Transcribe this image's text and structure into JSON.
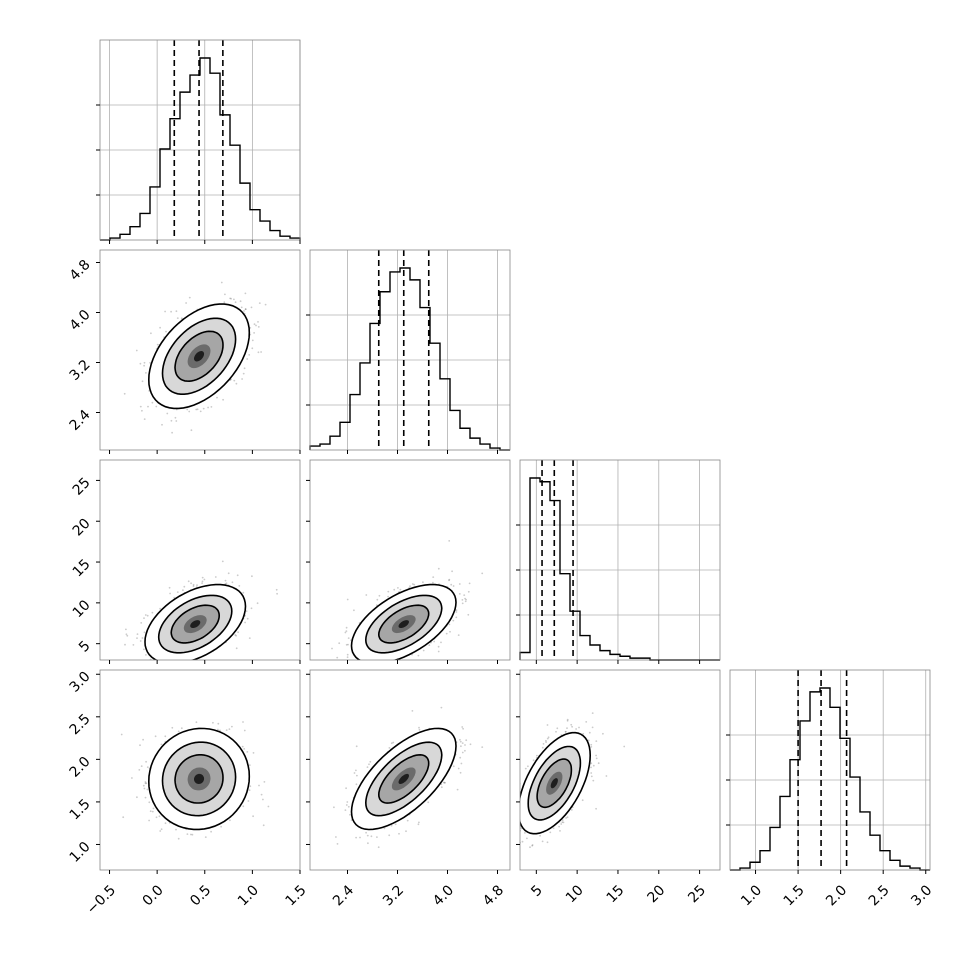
{
  "chart_data": {
    "type": "scatter",
    "title": "",
    "variables": [
      {
        "axis_range": [
          -0.6,
          1.5
        ],
        "tick_values": [
          -0.5,
          0.0,
          0.5,
          1.0,
          1.5
        ],
        "tick_labels": [
          "−0.5",
          "0.0",
          "0.5",
          "1.0",
          "1.5"
        ],
        "quantile_lines": [
          0.18,
          0.44,
          0.69
        ],
        "histogram": [
          0.0,
          0.01,
          0.03,
          0.07,
          0.14,
          0.28,
          0.48,
          0.64,
          0.78,
          0.87,
          0.96,
          0.88,
          0.66,
          0.5,
          0.3,
          0.16,
          0.1,
          0.05,
          0.02,
          0.01
        ]
      },
      {
        "axis_range": [
          1.8,
          5.0
        ],
        "tick_values": [
          2.4,
          3.2,
          4.0,
          4.8
        ],
        "tick_labels": [
          "2.4",
          "3.2",
          "4.0",
          "4.8"
        ],
        "quantile_lines": [
          2.9,
          3.3,
          3.7
        ],
        "histogram": [
          0.02,
          0.03,
          0.07,
          0.14,
          0.28,
          0.44,
          0.64,
          0.8,
          0.9,
          0.92,
          0.86,
          0.72,
          0.54,
          0.36,
          0.2,
          0.11,
          0.06,
          0.03,
          0.01,
          0.0
        ]
      },
      {
        "axis_range": [
          3.0,
          27.5
        ],
        "tick_values": [
          5,
          10,
          15,
          20,
          25
        ],
        "tick_labels": [
          "5",
          "10",
          "15",
          "20",
          "25"
        ],
        "quantile_lines": [
          5.7,
          7.2,
          9.5
        ],
        "histogram": [
          0.04,
          0.97,
          0.95,
          0.85,
          0.46,
          0.26,
          0.13,
          0.08,
          0.05,
          0.03,
          0.02,
          0.01,
          0.01,
          0.0,
          0.0,
          0.0,
          0.0,
          0.0,
          0.0,
          0.0
        ]
      },
      {
        "axis_range": [
          0.7,
          3.05
        ],
        "tick_values": [
          1.0,
          1.5,
          2.0,
          2.5,
          3.0
        ],
        "tick_labels": [
          "1.0",
          "1.5",
          "2.0",
          "2.5",
          "3.0"
        ],
        "quantile_lines": [
          1.5,
          1.77,
          2.07
        ],
        "histogram": [
          0.0,
          0.01,
          0.04,
          0.1,
          0.22,
          0.38,
          0.57,
          0.77,
          0.92,
          0.94,
          0.84,
          0.68,
          0.48,
          0.3,
          0.18,
          0.1,
          0.05,
          0.02,
          0.01,
          0.0
        ]
      }
    ],
    "scatter_pairs": [
      {
        "x_var": 0,
        "y_var": 1,
        "center": [
          0.44,
          3.3
        ],
        "spread": [
          0.24,
          0.38
        ],
        "correlation": 0.45
      },
      {
        "x_var": 0,
        "y_var": 2,
        "center": [
          0.4,
          7.4
        ],
        "spread": [
          0.24,
          2.2
        ],
        "correlation": 0.45
      },
      {
        "x_var": 1,
        "y_var": 2,
        "center": [
          3.3,
          7.4
        ],
        "spread": [
          0.38,
          2.2
        ],
        "correlation": 0.55
      },
      {
        "x_var": 0,
        "y_var": 3,
        "center": [
          0.44,
          1.77
        ],
        "spread": [
          0.24,
          0.27
        ],
        "correlation": 0.05
      },
      {
        "x_var": 1,
        "y_var": 3,
        "center": [
          3.3,
          1.77
        ],
        "spread": [
          0.38,
          0.27
        ],
        "correlation": 0.65
      },
      {
        "x_var": 2,
        "y_var": 3,
        "center": [
          7.2,
          1.72
        ],
        "spread": [
          2.0,
          0.27
        ],
        "correlation": 0.55
      }
    ],
    "grid": true
  }
}
